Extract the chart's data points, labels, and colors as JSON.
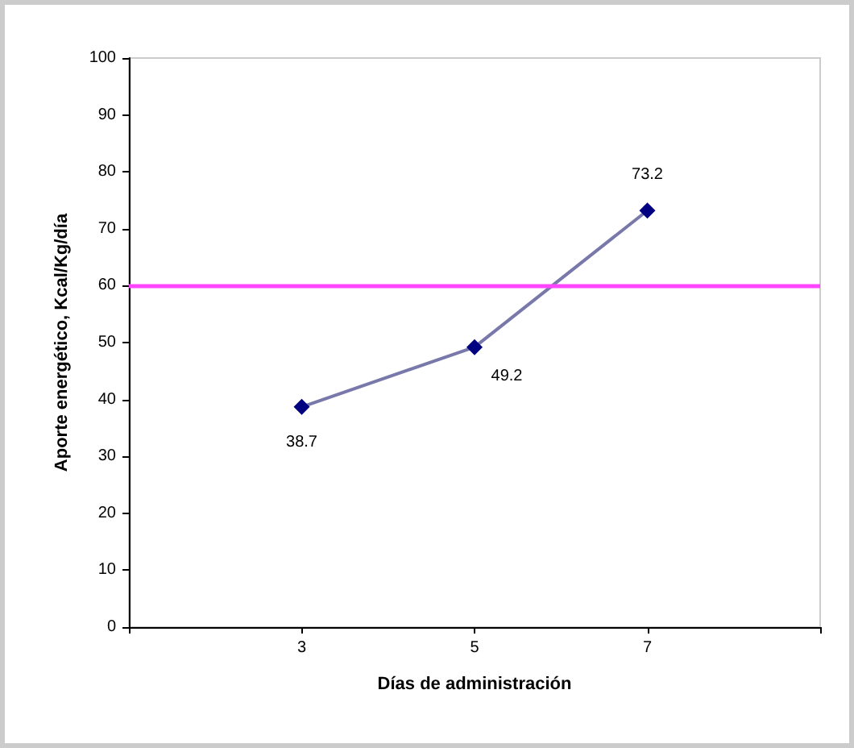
{
  "chart_data": {
    "type": "line",
    "xlabel": "Días de administración",
    "ylabel": "Aporte energético, Kcal/Kg/día",
    "x": [
      3,
      5,
      7
    ],
    "series": [
      {
        "color": "#000080",
        "values": [
          38.7,
          49.2,
          73.2
        ]
      }
    ],
    "xlim": [
      1,
      9
    ],
    "xticks": [
      {
        "value": 1,
        "label": null
      },
      3,
      5,
      7,
      {
        "value": 9,
        "label": null
      }
    ],
    "ylim": [
      0,
      100
    ],
    "yticks": [
      0,
      10,
      20,
      30,
      40,
      50,
      60,
      70,
      80,
      90,
      100
    ],
    "ref_lines": [
      {
        "axis": "y",
        "value": 60,
        "label": null,
        "color": "#ff44ff"
      }
    ],
    "data_labels": true,
    "marker": "diamond",
    "line_style": "solid",
    "grid": false
  }
}
